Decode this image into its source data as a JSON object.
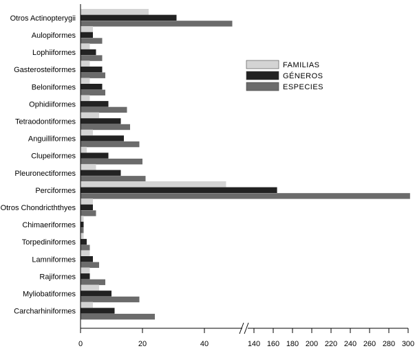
{
  "chart_data": {
    "type": "bar",
    "orientation": "horizontal",
    "categories": [
      "Otros Actinopterygii",
      "Aulopiformes",
      "Lophiiformes",
      "Gasterosteiformes",
      "Beloniformes",
      "Ophidiiformes",
      "Tetraodontiformes",
      "Anguilliformes",
      "Clupeiformes",
      "Pleuronectiformes",
      "Perciformes",
      "Otros Chondricththyes",
      "Chimaeriformes",
      "Torpediniformes",
      "Lamniformes",
      "Rajiformes",
      "Myliobatiformes",
      "Carcharhiniformes"
    ],
    "series": [
      {
        "name": "FAMILIAS",
        "color": "#d4d4d4",
        "values": [
          22,
          4,
          3,
          3,
          3,
          3,
          6,
          4,
          2,
          5,
          47,
          4,
          1,
          1,
          3,
          3,
          6,
          4
        ]
      },
      {
        "name": "GÉNEROS",
        "color": "#222222",
        "values": [
          31,
          4,
          5,
          7,
          7,
          9,
          13,
          14,
          9,
          13,
          164,
          4,
          1,
          2,
          4,
          3,
          10,
          11
        ]
      },
      {
        "name": "ESPECIES",
        "color": "#6b6b6b",
        "values": [
          49,
          7,
          7,
          8,
          8,
          15,
          16,
          19,
          20,
          21,
          302,
          5,
          1,
          3,
          6,
          8,
          19,
          24
        ]
      }
    ],
    "axis": {
      "type": "broken",
      "segment1": {
        "range": [
          0,
          52
        ],
        "ticks": [
          0,
          20,
          40
        ],
        "tick_labels": [
          "0",
          "20",
          "40"
        ]
      },
      "segment2": {
        "range": [
          135,
          300
        ],
        "ticks": [
          140,
          160,
          180,
          200,
          220,
          240,
          260,
          280,
          300
        ],
        "tick_labels": [
          "140",
          "160",
          "180",
          "200",
          "220",
          "240",
          "260",
          "280",
          "300"
        ]
      }
    },
    "legend": {
      "position": "top-right"
    },
    "title": "",
    "xlabel": "",
    "ylabel": ""
  }
}
